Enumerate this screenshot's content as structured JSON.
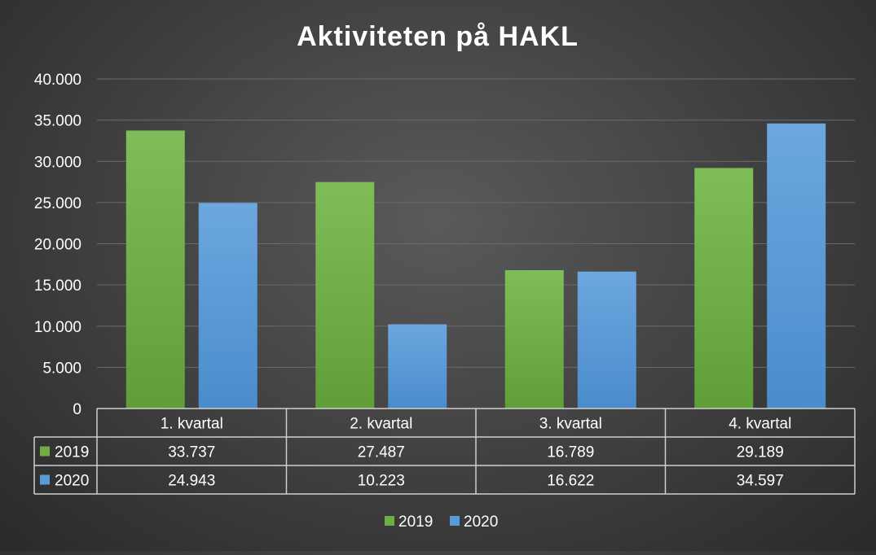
{
  "chart_data": {
    "type": "bar",
    "title": "Aktiviteten på HAKL",
    "categories": [
      "1. kvartal",
      "2. kvartal",
      "3. kvartal",
      "4. kvartal"
    ],
    "series": [
      {
        "name": "2019",
        "values": [
          33737,
          27487,
          16789,
          29189
        ],
        "labels": [
          "33.737",
          "27.487",
          "16.789",
          "29.189"
        ]
      },
      {
        "name": "2020",
        "values": [
          24943,
          10223,
          16622,
          34597
        ],
        "labels": [
          "24.943",
          "10.223",
          "16.622",
          "34.597"
        ]
      }
    ],
    "ylim": [
      0,
      40000
    ],
    "yticks": [
      0,
      5000,
      10000,
      15000,
      20000,
      25000,
      30000,
      35000,
      40000
    ],
    "ytick_labels": [
      "0",
      "5.000",
      "10.000",
      "15.000",
      "20.000",
      "25.000",
      "30.000",
      "35.000",
      "40.000"
    ],
    "grid": true,
    "legend_position": "bottom",
    "data_table": true
  },
  "colors": {
    "2019": "#70ad47",
    "2020": "#5b9bd5",
    "gridline": "#6a6a6a",
    "text": "#ffffff",
    "table_border": "#cfcfcf"
  }
}
